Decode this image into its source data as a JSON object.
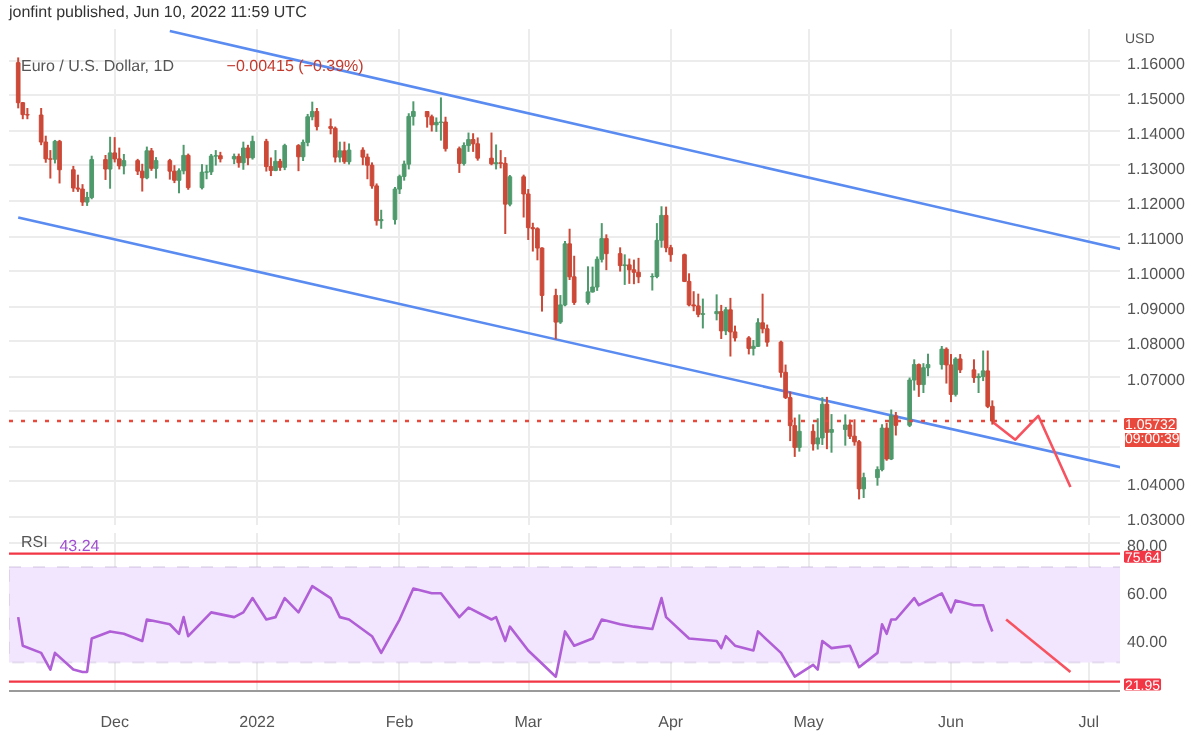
{
  "chart_data": [
    {
      "type": "candlestick",
      "title": "Euro / U.S. Dollar, 1D",
      "subtitle": "−0.00415 (−0.39%)",
      "ylabel": "USD",
      "annotations": [
        "jonfint published, Jun 10, 2022 11:59 UTC",
        "09:00:39"
      ],
      "grid": true,
      "tick_labels": "y",
      "xlim": [
        "2021-11-08",
        "2022-07-08"
      ],
      "ylim": [
        1.0277,
        1.169
      ],
      "xticks": [
        "2021-12-01",
        "2022-01-01",
        "2022-02-01",
        "2022-03-01",
        "2022-04-01",
        "2022-05-01",
        "2022-06-01",
        "2022-07-01"
      ],
      "yticks": [
        {
          "value": 1.03,
          "label": "1.03000"
        },
        {
          "value": 1.04,
          "label": "1.04000"
        },
        {
          "value": 1.05,
          "label": null
        },
        {
          "value": 1.06,
          "label": null
        },
        {
          "value": 1.07,
          "label": "1.07000"
        },
        {
          "value": 1.08,
          "label": "1.08000"
        },
        {
          "value": 1.09,
          "label": "1.09000"
        },
        {
          "value": 1.1,
          "label": "1.10000"
        },
        {
          "value": 1.11,
          "label": "1.11000"
        },
        {
          "value": 1.12,
          "label": "1.12000"
        },
        {
          "value": 1.13,
          "label": "1.13000"
        },
        {
          "value": 1.14,
          "label": "1.14000"
        },
        {
          "value": 1.15,
          "label": "1.15000"
        },
        {
          "value": 1.16,
          "label": "1.16000"
        }
      ],
      "ref_lines": [
        {
          "axis": "y",
          "value": 1.05732,
          "label": "1.05732",
          "color": "#e8493c",
          "line_style": "dotted"
        }
      ],
      "x": [
        "2021-11-10",
        "2021-11-11",
        "2021-11-12",
        "2021-11-15",
        "2021-11-16",
        "2021-11-17",
        "2021-11-18",
        "2021-11-19",
        "2021-11-22",
        "2021-11-23",
        "2021-11-24",
        "2021-11-25",
        "2021-11-26",
        "2021-11-29",
        "2021-11-30",
        "2021-12-01",
        "2021-12-02",
        "2021-12-03",
        "2021-12-06",
        "2021-12-07",
        "2021-12-08",
        "2021-12-09",
        "2021-12-10",
        "2021-12-13",
        "2021-12-14",
        "2021-12-15",
        "2021-12-16",
        "2021-12-17",
        "2021-12-20",
        "2021-12-21",
        "2021-12-22",
        "2021-12-23",
        "2021-12-24",
        "2021-12-27",
        "2021-12-28",
        "2021-12-29",
        "2021-12-30",
        "2021-12-31",
        "2022-01-03",
        "2022-01-04",
        "2022-01-05",
        "2022-01-06",
        "2022-01-07",
        "2022-01-10",
        "2022-01-11",
        "2022-01-12",
        "2022-01-13",
        "2022-01-14",
        "2022-01-17",
        "2022-01-18",
        "2022-01-19",
        "2022-01-20",
        "2022-01-21",
        "2022-01-24",
        "2022-01-25",
        "2022-01-26",
        "2022-01-27",
        "2022-01-28",
        "2022-01-31",
        "2022-02-01",
        "2022-02-02",
        "2022-02-03",
        "2022-02-04",
        "2022-02-07",
        "2022-02-08",
        "2022-02-09",
        "2022-02-10",
        "2022-02-11",
        "2022-02-14",
        "2022-02-15",
        "2022-02-16",
        "2022-02-17",
        "2022-02-18",
        "2022-02-21",
        "2022-02-22",
        "2022-02-23",
        "2022-02-24",
        "2022-02-25",
        "2022-02-28",
        "2022-03-01",
        "2022-03-02",
        "2022-03-03",
        "2022-03-04",
        "2022-03-07",
        "2022-03-08",
        "2022-03-09",
        "2022-03-10",
        "2022-03-11",
        "2022-03-14",
        "2022-03-15",
        "2022-03-16",
        "2022-03-17",
        "2022-03-18",
        "2022-03-21",
        "2022-03-22",
        "2022-03-23",
        "2022-03-24",
        "2022-03-25",
        "2022-03-28",
        "2022-03-29",
        "2022-03-30",
        "2022-03-31",
        "2022-04-01",
        "2022-04-04",
        "2022-04-05",
        "2022-04-06",
        "2022-04-07",
        "2022-04-08",
        "2022-04-11",
        "2022-04-12",
        "2022-04-13",
        "2022-04-14",
        "2022-04-15",
        "2022-04-18",
        "2022-04-19",
        "2022-04-20",
        "2022-04-21",
        "2022-04-22",
        "2022-04-25",
        "2022-04-26",
        "2022-04-27",
        "2022-04-28",
        "2022-04-29",
        "2022-05-02",
        "2022-05-03",
        "2022-05-04",
        "2022-05-05",
        "2022-05-06",
        "2022-05-09",
        "2022-05-10",
        "2022-05-11",
        "2022-05-12",
        "2022-05-13",
        "2022-05-16",
        "2022-05-17",
        "2022-05-18",
        "2022-05-19",
        "2022-05-20",
        "2022-05-23",
        "2022-05-24",
        "2022-05-25",
        "2022-05-26",
        "2022-05-27",
        "2022-05-30",
        "2022-05-31",
        "2022-06-01",
        "2022-06-02",
        "2022-06-03",
        "2022-06-06",
        "2022-06-07",
        "2022-06-08",
        "2022-06-09",
        "2022-06-10"
      ],
      "ohlc": [
        [
          1.1594,
          1.1609,
          1.1464,
          1.148
        ],
        [
          1.148,
          1.1482,
          1.1433,
          1.1446
        ],
        [
          1.1446,
          1.1465,
          1.1433,
          1.1445
        ],
        [
          1.1445,
          1.1465,
          1.1359,
          1.1368
        ],
        [
          1.1368,
          1.1386,
          1.1309,
          1.132
        ],
        [
          1.132,
          1.1345,
          1.1264,
          1.1319
        ],
        [
          1.1319,
          1.1374,
          1.1307,
          1.137
        ],
        [
          1.137,
          1.1374,
          1.125,
          1.1289
        ],
        [
          1.1289,
          1.13,
          1.1226,
          1.1237
        ],
        [
          1.1237,
          1.1275,
          1.1226,
          1.1234
        ],
        [
          1.1234,
          1.1248,
          1.1186,
          1.1197
        ],
        [
          1.1197,
          1.1226,
          1.1186,
          1.121
        ],
        [
          1.121,
          1.1329,
          1.1205,
          1.1318
        ],
        [
          1.1318,
          1.1331,
          1.126,
          1.1291
        ],
        [
          1.1291,
          1.1383,
          1.1235,
          1.1337
        ],
        [
          1.1337,
          1.1382,
          1.131,
          1.132
        ],
        [
          1.132,
          1.1352,
          1.129,
          1.13
        ],
        [
          1.13,
          1.1334,
          1.1276,
          1.1315
        ],
        [
          1.1315,
          1.132,
          1.1274,
          1.1285
        ],
        [
          1.1285,
          1.1306,
          1.1227,
          1.1266
        ],
        [
          1.1266,
          1.1355,
          1.1262,
          1.1343
        ],
        [
          1.1343,
          1.1351,
          1.1286,
          1.1293
        ],
        [
          1.1293,
          1.1325,
          1.1264,
          1.1315
        ],
        [
          1.1315,
          1.132,
          1.1261,
          1.1285
        ],
        [
          1.1285,
          1.1302,
          1.1251,
          1.1259
        ],
        [
          1.1259,
          1.1293,
          1.1222,
          1.1286
        ],
        [
          1.1286,
          1.136,
          1.1276,
          1.133
        ],
        [
          1.133,
          1.1335,
          1.1232,
          1.1238
        ],
        [
          1.1238,
          1.1305,
          1.1233,
          1.1282
        ],
        [
          1.1282,
          1.1303,
          1.1262,
          1.1283
        ],
        [
          1.1283,
          1.1334,
          1.1274,
          1.1328
        ],
        [
          1.1328,
          1.1345,
          1.1301,
          1.1329
        ],
        [
          1.1329,
          1.134,
          1.131,
          1.132
        ],
        [
          1.132,
          1.1335,
          1.1305,
          1.1327
        ],
        [
          1.1327,
          1.1335,
          1.1295,
          1.1309
        ],
        [
          1.1309,
          1.1369,
          1.1289,
          1.1351
        ],
        [
          1.1351,
          1.136,
          1.1302,
          1.1323
        ],
        [
          1.1323,
          1.1386,
          1.1318,
          1.137
        ],
        [
          1.137,
          1.1377,
          1.1284,
          1.1298
        ],
        [
          1.1298,
          1.1324,
          1.1271,
          1.1287
        ],
        [
          1.1287,
          1.1345,
          1.1285,
          1.1313
        ],
        [
          1.1313,
          1.132,
          1.1286,
          1.1296
        ],
        [
          1.1296,
          1.1363,
          1.1288,
          1.1358
        ],
        [
          1.1358,
          1.1362,
          1.1285,
          1.1326
        ],
        [
          1.1326,
          1.1375,
          1.1314,
          1.1367
        ],
        [
          1.1367,
          1.1448,
          1.1356,
          1.144
        ],
        [
          1.144,
          1.1483,
          1.143,
          1.1455
        ],
        [
          1.1455,
          1.1465,
          1.1401,
          1.1412
        ],
        [
          1.1412,
          1.1435,
          1.139,
          1.1407
        ],
        [
          1.1407,
          1.1412,
          1.131,
          1.1325
        ],
        [
          1.1325,
          1.1369,
          1.131,
          1.1343
        ],
        [
          1.1343,
          1.1369,
          1.1306,
          1.1312
        ],
        [
          1.1312,
          1.1364,
          1.1304,
          1.1345
        ],
        [
          1.1345,
          1.1353,
          1.1302,
          1.1325
        ],
        [
          1.1325,
          1.1335,
          1.1262,
          1.1302
        ],
        [
          1.1302,
          1.131,
          1.1235,
          1.1243
        ],
        [
          1.1243,
          1.125,
          1.113,
          1.1144
        ],
        [
          1.1144,
          1.1175,
          1.1121,
          1.1147
        ],
        [
          1.1147,
          1.124,
          1.1133,
          1.1234
        ],
        [
          1.1234,
          1.1275,
          1.122,
          1.127
        ],
        [
          1.127,
          1.1315,
          1.1258,
          1.1305
        ],
        [
          1.1305,
          1.145,
          1.129,
          1.1441
        ],
        [
          1.1441,
          1.1484,
          1.1415,
          1.1455
        ],
        [
          1.1455,
          1.1456,
          1.1409,
          1.144
        ],
        [
          1.144,
          1.1446,
          1.1398,
          1.1417
        ],
        [
          1.1417,
          1.1438,
          1.1397,
          1.1424
        ],
        [
          1.1424,
          1.1495,
          1.1372,
          1.1425
        ],
        [
          1.1425,
          1.144,
          1.1341,
          1.1349
        ],
        [
          1.1349,
          1.1355,
          1.128,
          1.1307
        ],
        [
          1.1307,
          1.1367,
          1.1301,
          1.1358
        ],
        [
          1.1358,
          1.1395,
          1.134,
          1.1375
        ],
        [
          1.1375,
          1.1393,
          1.134,
          1.1363
        ],
        [
          1.1363,
          1.1381,
          1.1315,
          1.1322
        ],
        [
          1.1322,
          1.1395,
          1.1302,
          1.1306
        ],
        [
          1.1306,
          1.1361,
          1.129,
          1.1309
        ],
        [
          1.1309,
          1.1345,
          1.1293,
          1.1307
        ],
        [
          1.1307,
          1.1325,
          1.1106,
          1.1191
        ],
        [
          1.1191,
          1.1274,
          1.1185,
          1.1269
        ],
        [
          1.1269,
          1.1275,
          1.1153,
          1.122
        ],
        [
          1.122,
          1.1234,
          1.1089,
          1.1124
        ],
        [
          1.1124,
          1.1138,
          1.1056,
          1.1121
        ],
        [
          1.1121,
          1.1125,
          1.1031,
          1.1066
        ],
        [
          1.1066,
          1.1068,
          1.0885,
          1.0931
        ],
        [
          1.0931,
          1.095,
          1.0806,
          1.0855
        ],
        [
          1.0855,
          1.0932,
          1.085,
          1.0904
        ],
        [
          1.0904,
          1.1086,
          1.09,
          1.1078
        ],
        [
          1.1078,
          1.1121,
          1.0975,
          1.0984
        ],
        [
          1.0984,
          1.1044,
          1.0904,
          1.0911
        ],
        [
          1.0911,
          1.1014,
          1.0905,
          1.0941
        ],
        [
          1.0941,
          1.1013,
          1.0939,
          1.0955
        ],
        [
          1.0955,
          1.1042,
          1.0944,
          1.1034
        ],
        [
          1.1034,
          1.1137,
          1.1025,
          1.1093
        ],
        [
          1.1093,
          1.1105,
          1.1003,
          1.105
        ],
        [
          1.105,
          1.1068,
          1.0999,
          1.1016
        ],
        [
          1.1016,
          1.1048,
          1.0961,
          1.1018
        ],
        [
          1.1018,
          1.1036,
          1.0964,
          1.1004
        ],
        [
          1.1004,
          1.1033,
          1.0963,
          1.0997
        ],
        [
          1.0997,
          1.1038,
          1.0966,
          1.0984
        ],
        [
          1.0984,
          1.0994,
          1.0945,
          1.0985
        ],
        [
          1.0985,
          1.1137,
          1.098,
          1.1088
        ],
        [
          1.1088,
          1.1185,
          1.1067,
          1.1159
        ],
        [
          1.1159,
          1.1184,
          1.1054,
          1.1067
        ],
        [
          1.1067,
          1.1075,
          1.1027,
          1.1047
        ],
        [
          1.1047,
          1.105,
          1.0969,
          1.0971
        ],
        [
          1.0971,
          1.0994,
          1.09,
          1.0904
        ],
        [
          1.0904,
          1.0943,
          1.0886,
          1.0901
        ],
        [
          1.0901,
          1.0936,
          1.0869,
          1.0877
        ],
        [
          1.0877,
          1.0922,
          1.0837,
          1.0879
        ],
        [
          1.0879,
          1.0934,
          1.086,
          1.0885
        ],
        [
          1.0885,
          1.0904,
          1.0807,
          1.083
        ],
        [
          1.083,
          1.0898,
          1.0818,
          1.089
        ],
        [
          1.089,
          1.0924,
          1.0757,
          1.0827
        ],
        [
          1.0827,
          1.0845,
          1.08,
          1.081
        ],
        [
          1.081,
          1.0815,
          1.0763,
          1.078
        ],
        [
          1.078,
          1.0804,
          1.076,
          1.0786
        ],
        [
          1.0786,
          1.0866,
          1.0784,
          1.0853
        ],
        [
          1.0853,
          1.0936,
          1.0823,
          1.0836
        ],
        [
          1.0836,
          1.0848,
          1.0785,
          1.0798
        ],
        [
          1.0798,
          1.0802,
          1.0697,
          1.0712
        ],
        [
          1.0712,
          1.0734,
          1.0636,
          1.064
        ],
        [
          1.064,
          1.0657,
          1.0516,
          1.056
        ],
        [
          1.056,
          1.0583,
          1.0471,
          1.0498
        ],
        [
          1.0498,
          1.0592,
          1.0486,
          1.0544
        ],
        [
          1.0544,
          1.0564,
          1.0489,
          1.0508
        ],
        [
          1.0508,
          1.0581,
          1.0492,
          1.0525
        ],
        [
          1.0525,
          1.0641,
          1.0505,
          1.0621
        ],
        [
          1.0621,
          1.0642,
          1.0493,
          1.0541
        ],
        [
          1.0541,
          1.0593,
          1.0483,
          1.0549
        ],
        [
          1.0549,
          1.0592,
          1.0503,
          1.0562
        ],
        [
          1.0562,
          1.0577,
          1.0522,
          1.053
        ],
        [
          1.053,
          1.0578,
          1.0503,
          1.0514
        ],
        [
          1.0514,
          1.0519,
          1.035,
          1.038
        ],
        [
          1.038,
          1.0426,
          1.0354,
          1.0412
        ],
        [
          1.0412,
          1.0444,
          1.0389,
          1.0435
        ],
        [
          1.0435,
          1.0564,
          1.043,
          1.0553
        ],
        [
          1.0553,
          1.0568,
          1.046,
          1.0465
        ],
        [
          1.0465,
          1.0606,
          1.0462,
          1.0588
        ],
        [
          1.0588,
          1.0599,
          1.0532,
          1.0561
        ],
        [
          1.0561,
          1.0697,
          1.0556,
          1.069
        ],
        [
          1.069,
          1.0749,
          1.066,
          1.0734
        ],
        [
          1.0734,
          1.0737,
          1.0642,
          1.0677
        ],
        [
          1.0677,
          1.0738,
          1.0653,
          1.0725
        ],
        [
          1.0725,
          1.0765,
          1.0701,
          1.0734
        ],
        [
          1.0734,
          1.0787,
          1.072,
          1.0778
        ],
        [
          1.0778,
          1.0783,
          1.068,
          1.0733
        ],
        [
          1.0733,
          1.0764,
          1.0627,
          1.0649
        ],
        [
          1.0649,
          1.0755,
          1.0643,
          1.075
        ],
        [
          1.075,
          1.0764,
          1.071,
          1.0719
        ],
        [
          1.0719,
          1.0749,
          1.0682,
          1.0697
        ],
        [
          1.0697,
          1.0709,
          1.0653,
          1.07
        ],
        [
          1.07,
          1.0774,
          1.0687,
          1.0716
        ],
        [
          1.0716,
          1.0774,
          1.061,
          1.0615
        ],
        [
          1.0615,
          1.0632,
          1.0563,
          1.0573
        ]
      ],
      "colors": [
        "#cc4837",
        "#cc4837",
        "#cc4837",
        "#cc4837",
        "#cc4837",
        "#cc4837",
        "#4f9a6c",
        "#cc4837",
        "#cc4837",
        "#cc4837",
        "#cc4837",
        "#4f9a6c",
        "#4f9a6c",
        "#cc4837",
        "#4f9a6c",
        "#cc4837",
        "#cc4837",
        "#4f9a6c",
        "#cc4837",
        "#cc4837",
        "#4f9a6c",
        "#cc4837",
        "#4f9a6c",
        "#cc4837",
        "#cc4837",
        "#4f9a6c",
        "#4f9a6c",
        "#cc4837",
        "#4f9a6c",
        "#4f9a6c",
        "#4f9a6c",
        "#4f9a6c",
        "#cc4837",
        "#4f9a6c",
        "#cc4837",
        "#4f9a6c",
        "#cc4837",
        "#4f9a6c",
        "#cc4837",
        "#cc4837",
        "#4f9a6c",
        "#cc4837",
        "#4f9a6c",
        "#cc4837",
        "#4f9a6c",
        "#4f9a6c",
        "#4f9a6c",
        "#cc4837",
        "#cc4837",
        "#cc4837",
        "#4f9a6c",
        "#cc4837",
        "#4f9a6c",
        "#cc4837",
        "#cc4837",
        "#cc4837",
        "#cc4837",
        "#4f9a6c",
        "#4f9a6c",
        "#4f9a6c",
        "#4f9a6c",
        "#4f9a6c",
        "#4f9a6c",
        "#cc4837",
        "#cc4837",
        "#4f9a6c",
        "#4f9a6c",
        "#cc4837",
        "#cc4837",
        "#4f9a6c",
        "#4f9a6c",
        "#cc4837",
        "#cc4837",
        "#cc4837",
        "#4f9a6c",
        "#cc4837",
        "#cc4837",
        "#4f9a6c",
        "#cc4837",
        "#cc4837",
        "#cc4837",
        "#cc4837",
        "#cc4837",
        "#cc4837",
        "#4f9a6c",
        "#4f9a6c",
        "#cc4837",
        "#cc4837",
        "#4f9a6c",
        "#4f9a6c",
        "#4f9a6c",
        "#4f9a6c",
        "#cc4837",
        "#cc4837",
        "#4f9a6c",
        "#cc4837",
        "#cc4837",
        "#cc4837",
        "#4f9a6c",
        "#4f9a6c",
        "#4f9a6c",
        "#cc4837",
        "#cc4837",
        "#cc4837",
        "#cc4837",
        "#cc4837",
        "#cc4837",
        "#4f9a6c",
        "#4f9a6c",
        "#cc4837",
        "#4f9a6c",
        "#cc4837",
        "#cc4837",
        "#cc4837",
        "#4f9a6c",
        "#4f9a6c",
        "#cc4837",
        "#cc4837",
        "#cc4837",
        "#cc4837",
        "#cc4837",
        "#cc4837",
        "#4f9a6c",
        "#cc4837",
        "#4f9a6c",
        "#4f9a6c",
        "#cc4837",
        "#4f9a6c",
        "#4f9a6c",
        "#cc4837",
        "#cc4837",
        "#cc4837",
        "#4f9a6c",
        "#4f9a6c",
        "#4f9a6c",
        "#cc4837",
        "#4f9a6c",
        "#cc4837",
        "#4f9a6c",
        "#4f9a6c",
        "#cc4837",
        "#4f9a6c",
        "#4f9a6c",
        "#4f9a6c",
        "#cc4837",
        "#cc4837",
        "#4f9a6c",
        "#cc4837",
        "#cc4837",
        "#4f9a6c",
        "#4f9a6c",
        "#cc4837",
        "#cc4837"
      ],
      "series": [
        {
          "type": "line",
          "color": "#5a8bf0",
          "x": [
            "2021-12-13",
            "2022-07-08"
          ],
          "values": [
            1.1684,
            1.1063
          ]
        },
        {
          "type": "line",
          "color": "#5a8bf0",
          "x": [
            "2021-11-10",
            "2022-07-08"
          ],
          "values": [
            1.1153,
            1.0441
          ]
        },
        {
          "type": "line",
          "color": "#f7525f",
          "x": [
            "2022-06-10",
            "2022-06-15",
            "2022-06-20",
            "2022-06-27"
          ],
          "values": [
            1.0571,
            1.052,
            1.0588,
            1.0385
          ]
        }
      ]
    },
    {
      "type": "line",
      "title": "RSI",
      "subtitle": "43.24",
      "grid": true,
      "xlim": [
        "2021-11-08",
        "2022-07-08"
      ],
      "ylim": [
        18,
        84.3
      ],
      "xticks": [
        {
          "value": "2021-12-01",
          "label": "Dec"
        },
        {
          "value": "2022-01-01",
          "label": "2022"
        },
        {
          "value": "2022-02-01",
          "label": "Feb"
        },
        {
          "value": "2022-03-01",
          "label": "Mar"
        },
        {
          "value": "2022-04-01",
          "label": "Apr"
        },
        {
          "value": "2022-05-01",
          "label": "May"
        },
        {
          "value": "2022-06-01",
          "label": "Jun"
        },
        {
          "value": "2022-07-01",
          "label": "Jul"
        }
      ],
      "yticks": [
        {
          "value": 40,
          "label": "40.00"
        },
        {
          "value": 60,
          "label": "60.00"
        },
        {
          "value": 80,
          "label": "80.00"
        }
      ],
      "ref_lines": [
        {
          "axis": "y",
          "value": 75.64,
          "label": "75.64",
          "color": "#f23645",
          "line_style": "solid"
        },
        {
          "axis": "y",
          "value": 21.95,
          "label": "21.95",
          "color": "#f23645",
          "line_style": "solid"
        }
      ],
      "bands": [
        {
          "axis": "y",
          "from": 30,
          "to": 70,
          "color": "#f1e6fd"
        }
      ],
      "series": [
        {
          "type": "line",
          "color": "#b05fd6",
          "x": [
            "2021-11-10",
            "2021-11-11",
            "2021-11-15",
            "2021-11-17",
            "2021-11-18",
            "2021-11-22",
            "2021-11-24",
            "2021-11-25",
            "2021-11-26",
            "2021-11-30",
            "2021-12-03",
            "2021-12-07",
            "2021-12-08",
            "2021-12-13",
            "2021-12-15",
            "2021-12-16",
            "2021-12-17",
            "2021-12-22",
            "2021-12-27",
            "2021-12-29",
            "2021-12-31",
            "2022-01-03",
            "2022-01-05",
            "2022-01-07",
            "2022-01-10",
            "2022-01-13",
            "2022-01-17",
            "2022-01-19",
            "2022-01-21",
            "2022-01-26",
            "2022-01-28",
            "2022-02-01",
            "2022-02-04",
            "2022-02-08",
            "2022-02-10",
            "2022-02-14",
            "2022-02-16",
            "2022-02-21",
            "2022-02-22",
            "2022-02-24",
            "2022-02-25",
            "2022-03-01",
            "2022-03-07",
            "2022-03-09",
            "2022-03-11",
            "2022-03-15",
            "2022-03-17",
            "2022-03-21",
            "2022-03-24",
            "2022-03-28",
            "2022-03-30",
            "2022-03-31",
            "2022-04-05",
            "2022-04-11",
            "2022-04-12",
            "2022-04-13",
            "2022-04-15",
            "2022-04-19",
            "2022-04-20",
            "2022-04-25",
            "2022-04-28",
            "2022-05-02",
            "2022-05-03",
            "2022-05-04",
            "2022-05-06",
            "2022-05-10",
            "2022-05-12",
            "2022-05-16",
            "2022-05-17",
            "2022-05-18",
            "2022-05-19",
            "2022-05-20",
            "2022-05-24",
            "2022-05-25",
            "2022-05-30",
            "2022-06-01",
            "2022-06-02",
            "2022-06-06",
            "2022-06-08",
            "2022-06-09",
            "2022-06-10"
          ],
          "values": [
            49,
            37,
            34,
            27,
            34,
            27,
            26,
            26,
            40,
            43,
            42,
            39,
            48,
            46,
            42,
            49,
            41,
            51,
            49,
            51,
            57,
            48,
            49,
            57,
            51,
            62,
            57,
            49,
            48,
            41,
            34,
            48,
            61,
            59,
            59,
            49,
            53,
            48,
            49,
            39,
            45,
            35,
            24,
            43,
            37,
            40,
            48,
            46,
            45,
            44,
            57,
            49,
            40,
            39,
            36,
            41,
            37,
            35,
            43,
            34,
            24,
            29,
            27,
            39,
            36,
            37,
            28,
            34,
            46,
            42,
            48,
            48,
            57,
            54,
            59,
            51,
            56,
            54,
            54,
            48,
            43
          ]
        },
        {
          "type": "line",
          "color": "#f7525f",
          "x": [
            "2022-06-13",
            "2022-06-27"
          ],
          "values": [
            48,
            26
          ]
        }
      ]
    }
  ]
}
